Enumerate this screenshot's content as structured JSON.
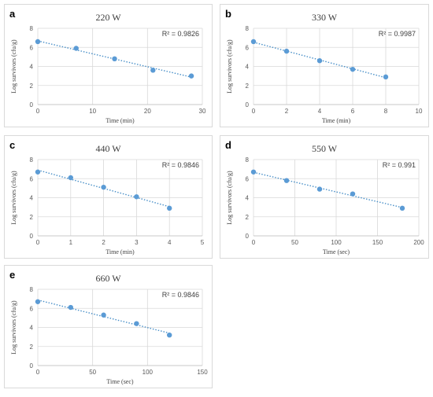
{
  "chart_data": [
    {
      "type": "scatter",
      "panel_label": "a",
      "title": "220 W",
      "xlabel": "Time (min)",
      "ylabel": "Log survivors (cfu/g)",
      "xlim": [
        0,
        30
      ],
      "xticks": [
        0,
        10,
        20,
        30
      ],
      "ylim": [
        0,
        8
      ],
      "yticks": [
        0,
        2,
        4,
        6,
        8
      ],
      "x": [
        0,
        7,
        14,
        21,
        28
      ],
      "y": [
        6.6,
        5.9,
        4.8,
        3.6,
        3.0
      ],
      "r_squared_label": "R² = 0.9826",
      "trendline": "linear, dotted",
      "grid": true
    },
    {
      "type": "scatter",
      "panel_label": "b",
      "title": "330 W",
      "xlabel": "Time (min)",
      "ylabel": "Log survivors (cfu/g)",
      "xlim": [
        0,
        10
      ],
      "xticks": [
        0,
        2,
        4,
        6,
        8,
        10
      ],
      "ylim": [
        0,
        8
      ],
      "yticks": [
        0,
        2,
        4,
        6,
        8
      ],
      "x": [
        0,
        2,
        4,
        6,
        8
      ],
      "y": [
        6.6,
        5.6,
        4.6,
        3.7,
        2.9
      ],
      "r_squared_label": "R² = 0.9987",
      "trendline": "linear, dotted",
      "grid": true
    },
    {
      "type": "scatter",
      "panel_label": "c",
      "title": "440 W",
      "xlabel": "Time (min)",
      "ylabel": "Log survivors (cfu/g)",
      "xlim": [
        0,
        5
      ],
      "xticks": [
        0,
        1,
        2,
        3,
        4,
        5
      ],
      "ylim": [
        0,
        8
      ],
      "yticks": [
        0,
        2,
        4,
        6,
        8
      ],
      "x": [
        0,
        1,
        2,
        3,
        4
      ],
      "y": [
        6.7,
        6.1,
        5.1,
        4.1,
        2.9
      ],
      "r_squared_label": "R² = 0.9846",
      "trendline": "linear, dotted",
      "grid": true
    },
    {
      "type": "scatter",
      "panel_label": "d",
      "title": "550 W",
      "xlabel": "Time (sec)",
      "ylabel": "Log survivors (cfu/g)",
      "xlim": [
        0,
        200
      ],
      "xticks": [
        0,
        50,
        100,
        150,
        200
      ],
      "ylim": [
        0,
        8
      ],
      "yticks": [
        0,
        2,
        4,
        6,
        8
      ],
      "x": [
        0,
        40,
        80,
        120,
        180
      ],
      "y": [
        6.7,
        5.8,
        4.9,
        4.4,
        2.9
      ],
      "r_squared_label": "R² = 0.991",
      "trendline": "linear, dotted",
      "grid": true
    },
    {
      "type": "scatter",
      "panel_label": "e",
      "title": "660 W",
      "xlabel": "Time (sec)",
      "ylabel": "Log survivors (cfu/g)",
      "xlim": [
        0,
        150
      ],
      "xticks": [
        0,
        50,
        100,
        150
      ],
      "ylim": [
        0,
        8
      ],
      "yticks": [
        0,
        2,
        4,
        6,
        8
      ],
      "x": [
        0,
        30,
        60,
        90,
        120
      ],
      "y": [
        6.7,
        6.1,
        5.3,
        4.4,
        3.2
      ],
      "r_squared_label": "R² = 0.9846",
      "trendline": "linear, dotted",
      "grid": true
    }
  ]
}
